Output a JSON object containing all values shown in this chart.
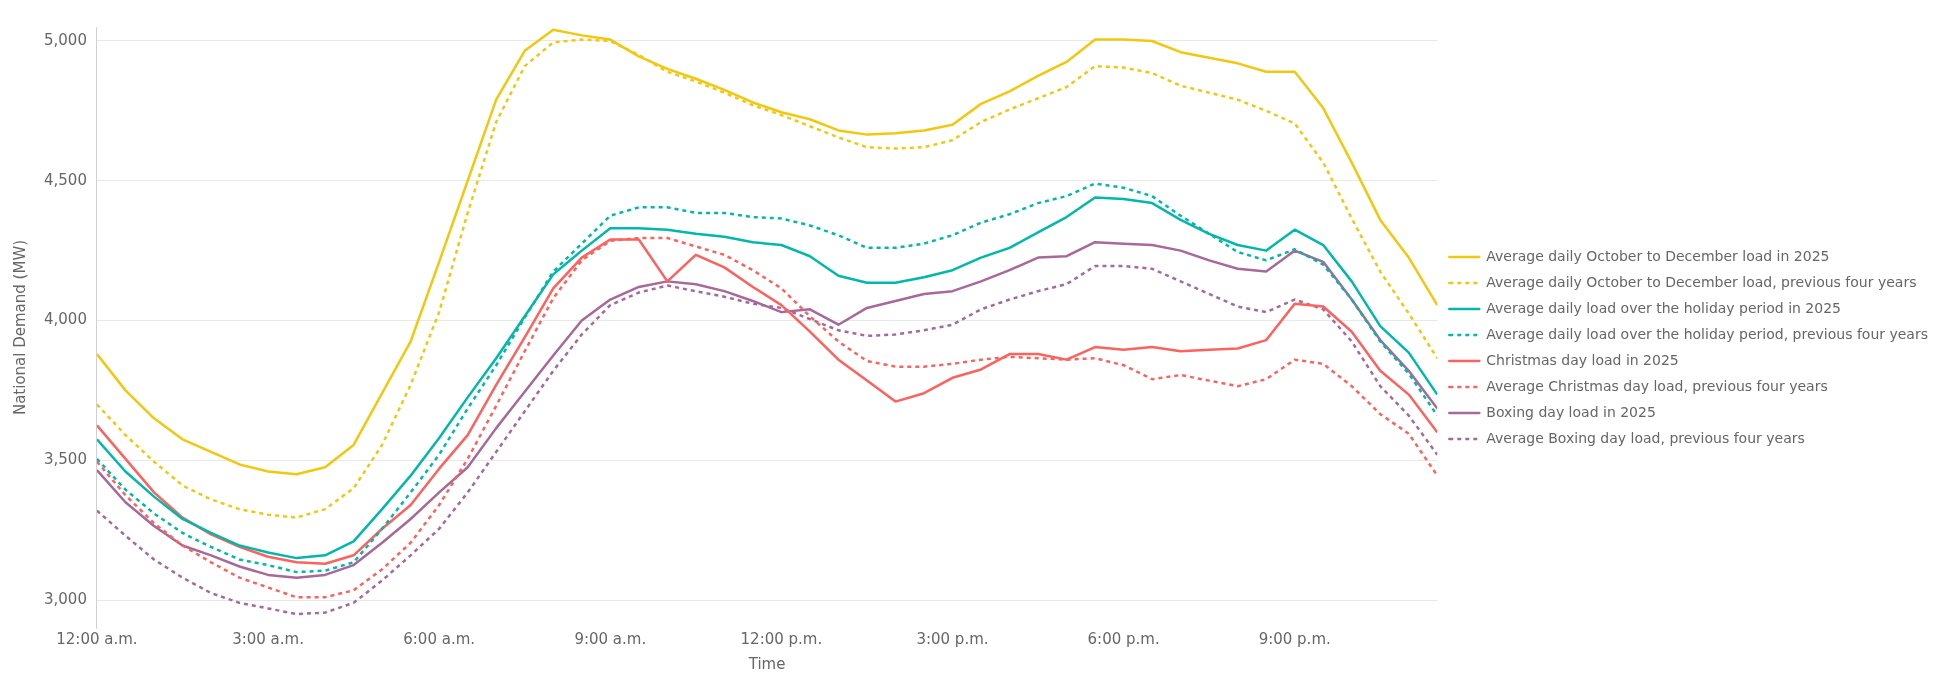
{
  "chart_data": {
    "type": "line",
    "xlabel": "Time",
    "ylabel": "National Demand (MW)",
    "x": [
      0,
      0.5,
      1,
      1.5,
      2,
      2.5,
      3,
      3.5,
      4,
      4.5,
      5,
      5.5,
      6,
      6.5,
      7,
      7.5,
      8,
      8.5,
      9,
      9.5,
      10,
      10.5,
      11,
      11.5,
      12,
      12.5,
      13,
      13.5,
      14,
      14.5,
      15,
      15.5,
      16,
      16.5,
      17,
      17.5,
      18,
      18.5,
      19,
      19.5,
      20,
      20.5,
      21,
      21.5,
      22,
      22.5,
      23,
      23.5
    ],
    "xlim": [
      0,
      23.5
    ],
    "xticks": [
      {
        "value": 0,
        "label": "12:00 a.m."
      },
      {
        "value": 3,
        "label": "3:00 a.m."
      },
      {
        "value": 6,
        "label": "6:00 a.m."
      },
      {
        "value": 9,
        "label": "9:00 a.m."
      },
      {
        "value": 12,
        "label": "12:00 p.m."
      },
      {
        "value": 15,
        "label": "3:00 p.m."
      },
      {
        "value": 18,
        "label": "6:00 p.m."
      },
      {
        "value": 21,
        "label": "9:00 p.m."
      }
    ],
    "ylim": [
      2900,
      5050
    ],
    "yticks": [
      {
        "value": 3000,
        "label": "3,000"
      },
      {
        "value": 3500,
        "label": "3,500"
      },
      {
        "value": 4000,
        "label": "4,000"
      },
      {
        "value": 4500,
        "label": "4,500"
      },
      {
        "value": 5000,
        "label": "5,000"
      }
    ],
    "grid": "y",
    "legend": "right",
    "marker": "none",
    "series": [
      {
        "name": "Average daily October to December load in 2025",
        "color": "#f2c80f",
        "line_style": "solid",
        "values": [
          3880,
          3750,
          3650,
          3575,
          3530,
          3485,
          3460,
          3450,
          3475,
          3555,
          3740,
          3925,
          4210,
          4500,
          4790,
          4965,
          5040,
          5020,
          5005,
          4945,
          4900,
          4865,
          4825,
          4780,
          4745,
          4720,
          4680,
          4665,
          4670,
          4680,
          4700,
          4775,
          4820,
          4875,
          4925,
          5005,
          5005,
          5000,
          4960,
          4940,
          4920,
          4890,
          4890,
          4760,
          4565,
          4360,
          4225,
          4055
        ]
      },
      {
        "name": "Average daily October to December load, previous four years",
        "color": "#f2c80f",
        "line_style": "dashed",
        "values": [
          3700,
          3590,
          3495,
          3410,
          3360,
          3325,
          3305,
          3295,
          3325,
          3400,
          3555,
          3770,
          4030,
          4385,
          4710,
          4910,
          4995,
          5005,
          5000,
          4950,
          4890,
          4855,
          4815,
          4770,
          4735,
          4695,
          4655,
          4620,
          4615,
          4620,
          4645,
          4710,
          4755,
          4795,
          4835,
          4910,
          4905,
          4885,
          4840,
          4815,
          4790,
          4750,
          4705,
          4565,
          4365,
          4175,
          4025,
          3865
        ]
      },
      {
        "name": "Average daily load over the holiday period in 2025",
        "color": "#01b8aa",
        "line_style": "solid",
        "values": [
          3575,
          3460,
          3370,
          3290,
          3240,
          3195,
          3170,
          3150,
          3160,
          3210,
          3325,
          3445,
          3580,
          3725,
          3865,
          4015,
          4165,
          4250,
          4330,
          4330,
          4325,
          4310,
          4300,
          4280,
          4270,
          4230,
          4160,
          4135,
          4135,
          4155,
          4180,
          4225,
          4260,
          4315,
          4370,
          4440,
          4435,
          4420,
          4360,
          4310,
          4270,
          4250,
          4325,
          4270,
          4140,
          3980,
          3885,
          3735
        ]
      },
      {
        "name": "Average daily load over the holiday period, previous four years",
        "color": "#01b8aa",
        "line_style": "dashed",
        "values": [
          3505,
          3395,
          3310,
          3240,
          3190,
          3145,
          3125,
          3100,
          3105,
          3135,
          3255,
          3385,
          3520,
          3685,
          3840,
          4010,
          4175,
          4275,
          4375,
          4405,
          4405,
          4385,
          4385,
          4370,
          4365,
          4340,
          4305,
          4260,
          4260,
          4275,
          4305,
          4350,
          4380,
          4420,
          4445,
          4490,
          4475,
          4445,
          4375,
          4310,
          4245,
          4215,
          4255,
          4200,
          4075,
          3925,
          3810,
          3660
        ]
      },
      {
        "name": "Christmas day load in 2025",
        "color": "#fd625e",
        "line_style": "solid",
        "values": [
          3625,
          3505,
          3385,
          3295,
          3235,
          3190,
          3155,
          3135,
          3130,
          3160,
          3255,
          3340,
          3470,
          3590,
          3770,
          3940,
          4115,
          4225,
          4290,
          4290,
          4140,
          4235,
          4190,
          4120,
          4055,
          3960,
          3860,
          3785,
          3710,
          3740,
          3795,
          3825,
          3880,
          3880,
          3860,
          3905,
          3895,
          3905,
          3890,
          3895,
          3900,
          3930,
          4060,
          4050,
          3960,
          3820,
          3735,
          3600
        ]
      },
      {
        "name": "Average Christmas day load, previous four years",
        "color": "#fd625e",
        "line_style": "dashed",
        "values": [
          3495,
          3375,
          3275,
          3195,
          3135,
          3080,
          3045,
          3010,
          3010,
          3035,
          3110,
          3205,
          3340,
          3505,
          3695,
          3890,
          4080,
          4215,
          4285,
          4295,
          4295,
          4265,
          4235,
          4180,
          4115,
          4015,
          3925,
          3855,
          3835,
          3835,
          3845,
          3860,
          3870,
          3865,
          3860,
          3865,
          3840,
          3790,
          3805,
          3785,
          3765,
          3790,
          3860,
          3845,
          3765,
          3665,
          3595,
          3445
        ]
      },
      {
        "name": "Boxing day load in 2025",
        "color": "#a66999",
        "line_style": "solid",
        "values": [
          3465,
          3350,
          3265,
          3195,
          3160,
          3120,
          3090,
          3080,
          3090,
          3125,
          3205,
          3290,
          3385,
          3475,
          3615,
          3745,
          3875,
          4000,
          4075,
          4120,
          4140,
          4130,
          4105,
          4070,
          4030,
          4040,
          3985,
          4045,
          4070,
          4095,
          4105,
          4140,
          4180,
          4225,
          4230,
          4280,
          4275,
          4270,
          4250,
          4215,
          4185,
          4175,
          4250,
          4210,
          4075,
          3930,
          3820,
          3685
        ]
      },
      {
        "name": "Average Boxing day load, previous four years",
        "color": "#a66999",
        "line_style": "dashed",
        "values": [
          3320,
          3230,
          3145,
          3080,
          3025,
          2990,
          2970,
          2950,
          2955,
          2990,
          3070,
          3160,
          3255,
          3385,
          3530,
          3675,
          3820,
          3950,
          4055,
          4100,
          4125,
          4105,
          4085,
          4060,
          4045,
          4005,
          3965,
          3945,
          3950,
          3965,
          3985,
          4040,
          4075,
          4105,
          4130,
          4195,
          4195,
          4185,
          4140,
          4095,
          4050,
          4030,
          4075,
          4040,
          3925,
          3765,
          3660,
          3520
        ]
      }
    ]
  }
}
